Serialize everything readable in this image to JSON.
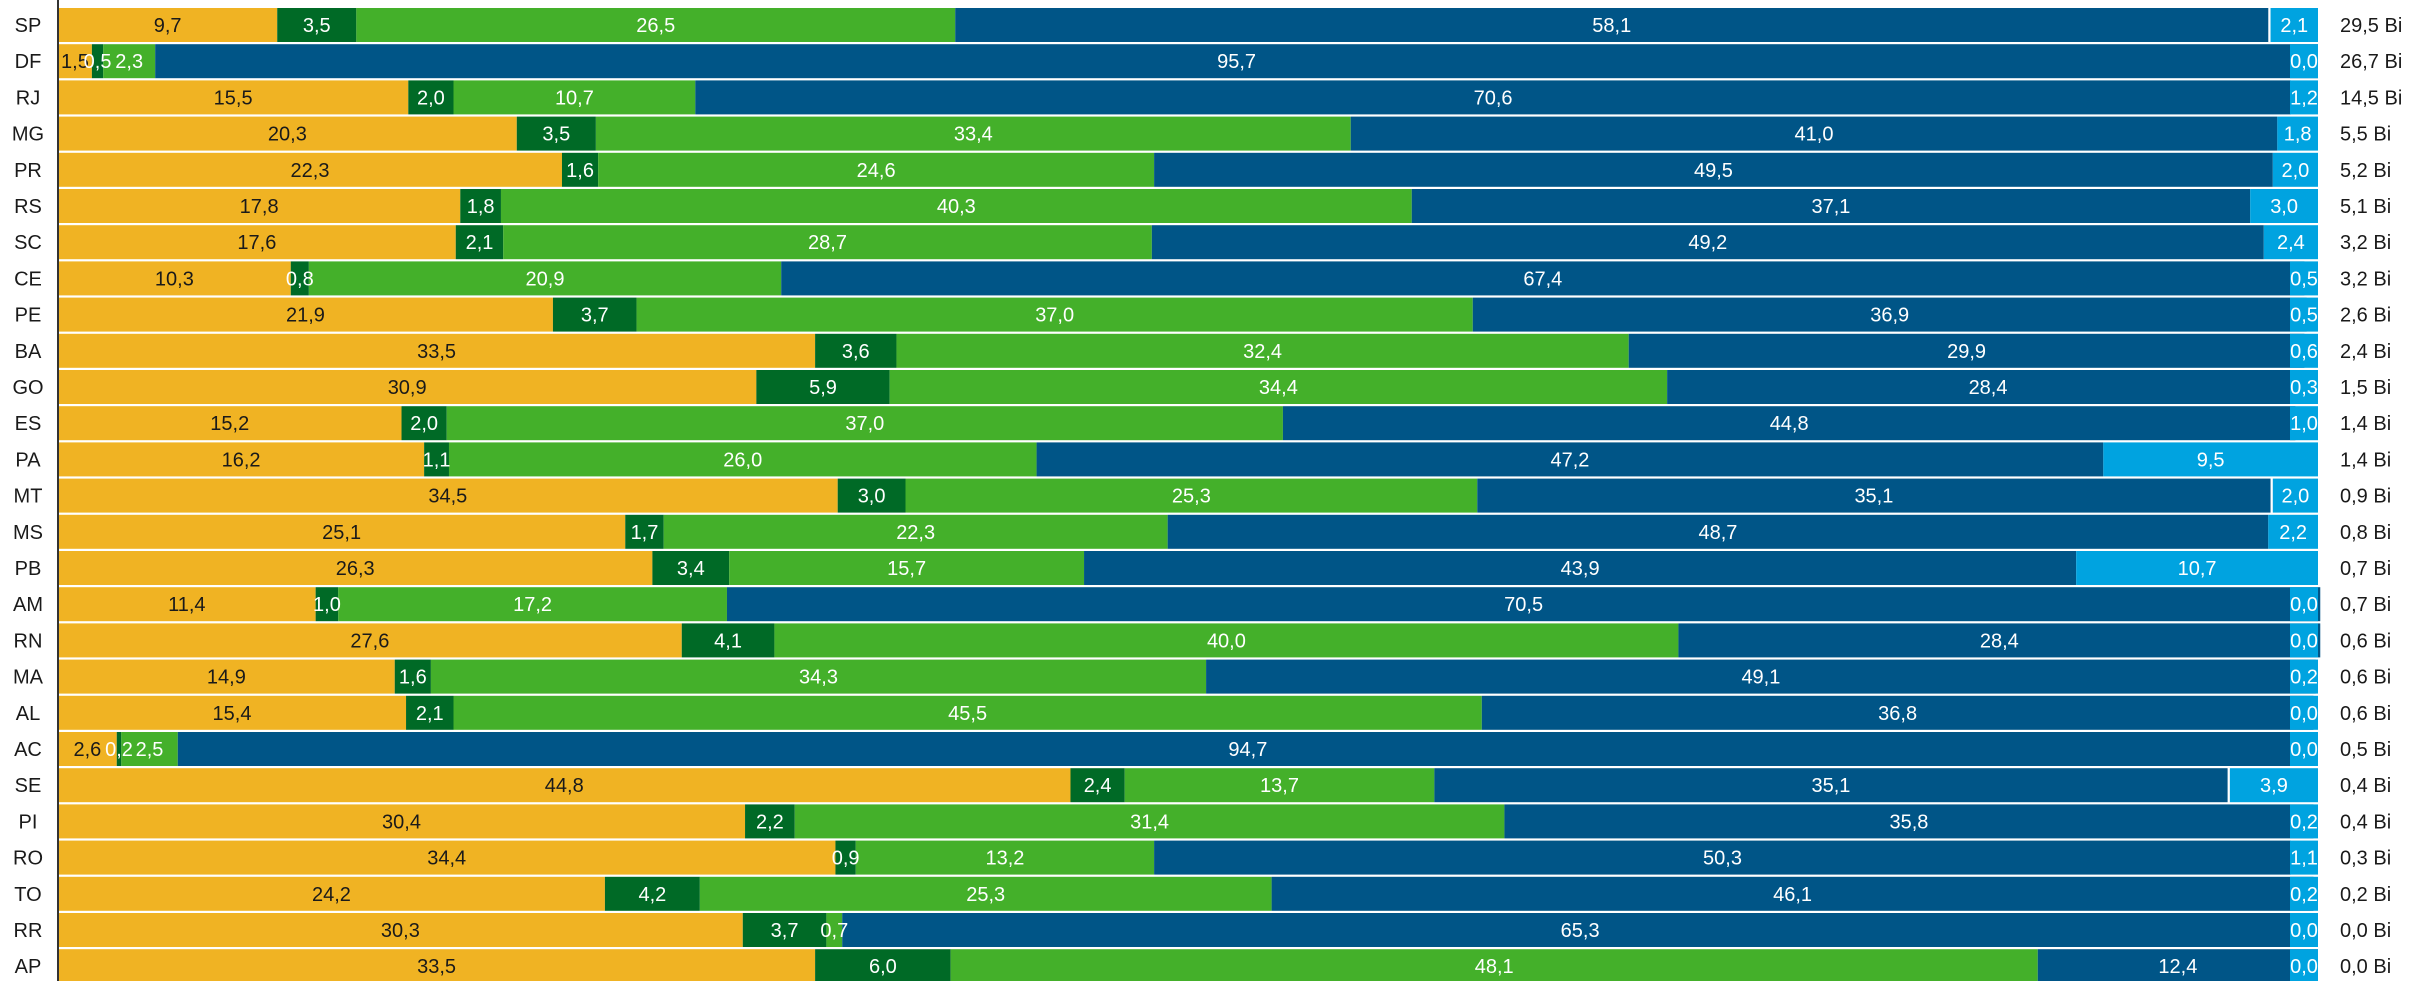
{
  "chart_data": {
    "type": "bar",
    "orientation": "horizontal",
    "stacked": true,
    "normalized_percent": true,
    "title": "",
    "xlabel": "",
    "ylabel": "",
    "grid": false,
    "legend": "none",
    "categories": [
      "SP",
      "DF",
      "RJ",
      "MG",
      "PR",
      "RS",
      "SC",
      "CE",
      "PE",
      "BA",
      "GO",
      "ES",
      "PA",
      "MT",
      "MS",
      "PB",
      "AM",
      "RN",
      "MA",
      "AL",
      "AC",
      "SE",
      "PI",
      "RO",
      "TO",
      "RR",
      "AP"
    ],
    "series": [
      {
        "color": "#F0B323",
        "values": [
          9.7,
          1.5,
          15.5,
          20.3,
          22.3,
          17.8,
          17.6,
          10.3,
          21.9,
          33.5,
          30.9,
          15.2,
          16.2,
          34.5,
          25.1,
          26.3,
          11.4,
          27.6,
          14.9,
          15.4,
          2.6,
          44.8,
          30.4,
          34.4,
          24.2,
          30.3,
          33.5
        ]
      },
      {
        "color": "#006A26",
        "values": [
          3.5,
          0.5,
          2.0,
          3.5,
          1.6,
          1.8,
          2.1,
          0.8,
          3.7,
          3.6,
          5.9,
          2.0,
          1.1,
          3.0,
          1.7,
          3.4,
          1.0,
          4.1,
          1.6,
          2.1,
          0.2,
          2.4,
          2.2,
          0.9,
          4.2,
          3.7,
          6.0
        ]
      },
      {
        "color": "#44B02A",
        "values": [
          26.5,
          2.3,
          10.7,
          33.4,
          24.6,
          40.3,
          28.7,
          20.9,
          37.0,
          32.4,
          34.4,
          37.0,
          26.0,
          25.3,
          22.3,
          15.7,
          17.2,
          40.0,
          34.3,
          45.5,
          2.5,
          13.7,
          31.4,
          13.2,
          25.3,
          0.7,
          48.1
        ]
      },
      {
        "color": "#005587",
        "values": [
          58.1,
          95.7,
          70.6,
          41.0,
          49.5,
          37.1,
          49.2,
          67.4,
          36.9,
          29.9,
          28.4,
          44.8,
          47.2,
          35.1,
          48.7,
          43.9,
          70.5,
          28.4,
          49.1,
          36.8,
          94.7,
          35.1,
          35.8,
          50.3,
          46.1,
          65.3,
          12.4
        ]
      },
      {
        "color": "#00A3E0",
        "values": [
          2.1,
          0.0,
          1.2,
          1.8,
          2.0,
          3.0,
          2.4,
          0.5,
          0.5,
          0.6,
          0.3,
          1.0,
          9.5,
          2.0,
          2.2,
          10.7,
          0.0,
          0.0,
          0.2,
          0.0,
          0.0,
          3.9,
          0.2,
          1.1,
          0.2,
          0.0,
          0.0
        ]
      }
    ],
    "totals": [
      "29,5 Bi",
      "26,7 Bi",
      "14,5 Bi",
      "5,5 Bi",
      "5,2 Bi",
      "5,1 Bi",
      "3,2 Bi",
      "3,2 Bi",
      "2,6 Bi",
      "2,4 Bi",
      "1,5 Bi",
      "1,4 Bi",
      "1,4 Bi",
      "0,9 Bi",
      "0,8 Bi",
      "0,7 Bi",
      "0,7 Bi",
      "0,6 Bi",
      "0,6 Bi",
      "0,6 Bi",
      "0,5 Bi",
      "0,4 Bi",
      "0,4 Bi",
      "0,3 Bi",
      "0,2 Bi",
      "0,0 Bi",
      "0,0 Bi"
    ],
    "xlim": [
      0,
      100
    ]
  }
}
